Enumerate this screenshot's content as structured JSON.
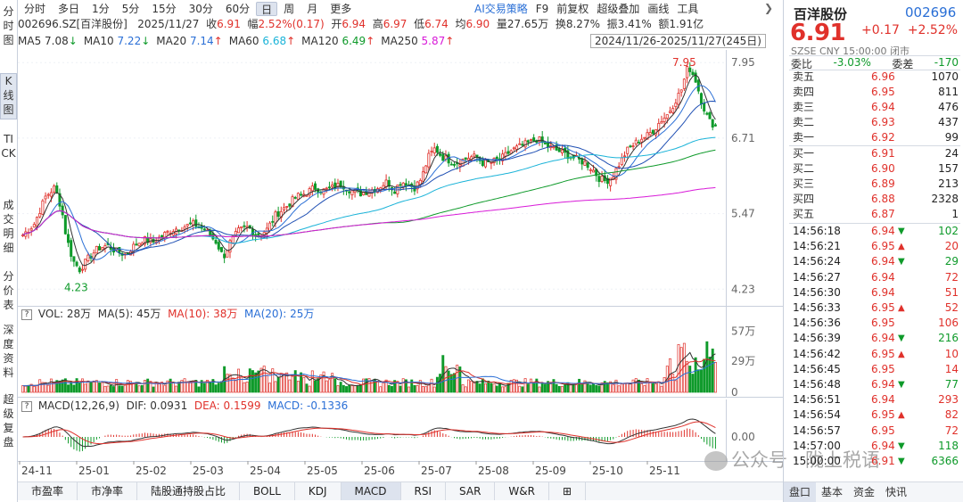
{
  "tabs": [
    "分时",
    "多日",
    "1分",
    "5分",
    "15分",
    "30分",
    "60分",
    "日",
    "周",
    "月",
    "更多"
  ],
  "active_tab": "日",
  "right_tools": {
    "ai": "AI交易策略",
    "items": [
      "F9",
      "前复权",
      "超级叠加",
      "画线",
      "工具"
    ]
  },
  "collapse_icon": "chevron-right",
  "sidebar": [
    "分时图",
    "K线图",
    "TICK",
    "成交明细",
    "分价表",
    "深度资料",
    "超级复盘"
  ],
  "info": {
    "code_name": "002696.SZ[百洋股份]",
    "date": "2025/11/27",
    "close_label": "收",
    "close": "6.91",
    "amp_label": "幅",
    "amp": "2.52%(0.17)",
    "open_label": "开",
    "open": "6.94",
    "high_label": "高",
    "high": "6.97",
    "low_label": "低",
    "low": "6.74",
    "avg_label": "均",
    "avg": "6.90",
    "vol_label": "量",
    "vol": "27.65万",
    "turn_label": "换",
    "turn": "8.27%",
    "swing_label": "振",
    "swing": "3.41%",
    "amt_label": "额",
    "amt": "1.91亿"
  },
  "ma": [
    {
      "name": "MA5",
      "value": "7.08",
      "arrow": "↓",
      "color": "#333333"
    },
    {
      "name": "MA10",
      "value": "7.22",
      "arrow": "↓",
      "color": "#2a6fd6"
    },
    {
      "name": "MA20",
      "value": "7.14",
      "arrow": "↑",
      "color": "#2a6fd6"
    },
    {
      "name": "MA60",
      "value": "6.68",
      "arrow": "↑",
      "color": "#1ab3d8"
    },
    {
      "name": "MA120",
      "value": "6.49",
      "arrow": "↑",
      "color": "#0e9a2a"
    },
    {
      "name": "MA250",
      "value": "5.87",
      "arrow": "↑",
      "color": "#d81ad8"
    }
  ],
  "date_range": "2024/11/26-2025/11/27(245日)",
  "price_axis": [
    "7.95",
    "6.71",
    "5.47",
    "4.23"
  ],
  "high_label": "7.95",
  "low_label": "4.23",
  "volume": {
    "legend_q": "?",
    "vol": "VOL: 28万",
    "ma5": "MA(5): 45万",
    "ma10": "MA(10): 38万",
    "ma20": "MA(20): 25万",
    "axis": [
      "57万",
      "29万",
      "0"
    ]
  },
  "macd": {
    "legend_q": "?",
    "title": "MACD(12,26,9)",
    "dif": "DIF: 0.0931",
    "dea": "DEA: 0.1599",
    "macd": "MACD: -0.1336",
    "axis": "0.00"
  },
  "x_axis": [
    "24-11",
    "25-01",
    "25-02",
    "25-03",
    "25-04",
    "25-05",
    "25-06",
    "25-07",
    "25-08",
    "25-09",
    "25-10",
    "25-11"
  ],
  "bottom_tabs": [
    "市盈率",
    "市净率",
    "陆股通持股占比",
    "BOLL",
    "KDJ",
    "MACD",
    "RSI",
    "SAR",
    "W&R",
    "⊞"
  ],
  "bottom_active": "MACD",
  "panel": {
    "name": "百洋股份",
    "code": "002696",
    "price": "6.91",
    "change": "+0.17",
    "change_pct": "+2.52%",
    "status": "SZSE  CNY  15:00:00  闭市",
    "wb_label": "委比",
    "wb": "-3.03%",
    "wc_label": "委差",
    "wc": "-170",
    "asks": [
      {
        "label": "卖五",
        "price": "6.96",
        "vol": "1070"
      },
      {
        "label": "卖四",
        "price": "6.95",
        "vol": "811"
      },
      {
        "label": "卖三",
        "price": "6.94",
        "vol": "476"
      },
      {
        "label": "卖二",
        "price": "6.93",
        "vol": "437"
      },
      {
        "label": "卖一",
        "price": "6.92",
        "vol": "99"
      }
    ],
    "bids": [
      {
        "label": "买一",
        "price": "6.91",
        "vol": "24"
      },
      {
        "label": "买二",
        "price": "6.90",
        "vol": "157"
      },
      {
        "label": "买三",
        "price": "6.89",
        "vol": "213"
      },
      {
        "label": "买四",
        "price": "6.88",
        "vol": "2328"
      },
      {
        "label": "买五",
        "price": "6.87",
        "vol": "1"
      }
    ],
    "ticks": [
      {
        "time": "14:56:18",
        "price": "6.94",
        "dir": "down",
        "vol": "102"
      },
      {
        "time": "14:56:21",
        "price": "6.95",
        "dir": "up",
        "vol": "20"
      },
      {
        "time": "14:56:24",
        "price": "6.94",
        "dir": "down",
        "vol": "29"
      },
      {
        "time": "14:56:27",
        "price": "6.94",
        "dir": "",
        "vol": "72"
      },
      {
        "time": "14:56:30",
        "price": "6.94",
        "dir": "",
        "vol": "51"
      },
      {
        "time": "14:56:33",
        "price": "6.95",
        "dir": "up",
        "vol": "52"
      },
      {
        "time": "14:56:36",
        "price": "6.95",
        "dir": "",
        "vol": "106"
      },
      {
        "time": "14:56:39",
        "price": "6.94",
        "dir": "down",
        "vol": "216"
      },
      {
        "time": "14:56:42",
        "price": "6.95",
        "dir": "up",
        "vol": "10"
      },
      {
        "time": "14:56:45",
        "price": "6.95",
        "dir": "",
        "vol": "14"
      },
      {
        "time": "14:56:48",
        "price": "6.94",
        "dir": "down",
        "vol": "77"
      },
      {
        "time": "14:56:51",
        "price": "6.94",
        "dir": "",
        "vol": "293"
      },
      {
        "time": "14:56:54",
        "price": "6.95",
        "dir": "up",
        "vol": "82"
      },
      {
        "time": "14:56:57",
        "price": "6.95",
        "dir": "",
        "vol": "72"
      },
      {
        "time": "14:57:00",
        "price": "6.94",
        "dir": "down",
        "vol": "118"
      },
      {
        "time": "15:00:00",
        "price": "6.91",
        "dir": "down",
        "vol": "6366"
      }
    ],
    "tabs": [
      "盘口",
      "基本",
      "资金",
      "快讯"
    ],
    "active_tab": "盘口"
  },
  "watermark": "公众号 · 陇上税语",
  "chart_data": {
    "type": "candlestick",
    "x_range": [
      "2024/11/26",
      "2025/11/27"
    ],
    "ylim": [
      4.0,
      8.1
    ],
    "high": 7.95,
    "low": 4.23,
    "close_points": [
      [
        0,
        5.12
      ],
      [
        10,
        5.3
      ],
      [
        20,
        5.75
      ],
      [
        28,
        5.9
      ],
      [
        34,
        5.55
      ],
      [
        38,
        5.1
      ],
      [
        44,
        4.7
      ],
      [
        50,
        4.55
      ],
      [
        58,
        4.75
      ],
      [
        66,
        4.9
      ],
      [
        74,
        4.95
      ],
      [
        82,
        4.85
      ],
      [
        90,
        4.8
      ],
      [
        98,
        4.95
      ],
      [
        106,
        5.05
      ],
      [
        114,
        5.0
      ],
      [
        122,
        5.1
      ],
      [
        130,
        5.2
      ],
      [
        140,
        5.25
      ],
      [
        150,
        5.3
      ],
      [
        160,
        5.2
      ],
      [
        170,
        5.0
      ],
      [
        176,
        4.75
      ],
      [
        182,
        5.0
      ],
      [
        190,
        5.2
      ],
      [
        198,
        5.25
      ],
      [
        206,
        5.1
      ],
      [
        214,
        5.2
      ],
      [
        222,
        5.45
      ],
      [
        232,
        5.6
      ],
      [
        240,
        5.75
      ],
      [
        248,
        5.8
      ],
      [
        256,
        5.9
      ],
      [
        264,
        5.85
      ],
      [
        272,
        5.9
      ],
      [
        280,
        5.95
      ],
      [
        288,
        5.85
      ],
      [
        296,
        5.8
      ],
      [
        304,
        5.85
      ],
      [
        312,
        5.9
      ],
      [
        320,
        6.0
      ],
      [
        326,
        5.85
      ],
      [
        332,
        6.0
      ],
      [
        338,
        5.95
      ],
      [
        344,
        5.9
      ],
      [
        350,
        6.05
      ],
      [
        356,
        6.4
      ],
      [
        362,
        6.55
      ],
      [
        368,
        6.4
      ],
      [
        374,
        6.35
      ],
      [
        380,
        6.3
      ],
      [
        386,
        6.35
      ],
      [
        392,
        6.4
      ],
      [
        398,
        6.4
      ],
      [
        404,
        6.3
      ],
      [
        410,
        6.3
      ],
      [
        416,
        6.35
      ],
      [
        422,
        6.4
      ],
      [
        428,
        6.5
      ],
      [
        434,
        6.55
      ],
      [
        440,
        6.6
      ],
      [
        446,
        6.65
      ],
      [
        452,
        6.7
      ],
      [
        458,
        6.6
      ],
      [
        464,
        6.55
      ],
      [
        470,
        6.5
      ],
      [
        476,
        6.45
      ],
      [
        482,
        6.4
      ],
      [
        488,
        6.35
      ],
      [
        494,
        6.3
      ],
      [
        500,
        6.2
      ],
      [
        506,
        6.05
      ],
      [
        512,
        6.0
      ],
      [
        518,
        6.1
      ],
      [
        524,
        6.3
      ],
      [
        530,
        6.5
      ],
      [
        536,
        6.6
      ],
      [
        542,
        6.7
      ],
      [
        548,
        6.75
      ],
      [
        554,
        6.85
      ],
      [
        560,
        7.0
      ],
      [
        566,
        7.1
      ],
      [
        572,
        7.3
      ],
      [
        578,
        7.5
      ],
      [
        584,
        7.9
      ],
      [
        590,
        7.7
      ],
      [
        596,
        7.3
      ],
      [
        602,
        7.0
      ],
      [
        608,
        6.91
      ]
    ],
    "volume_ylim": [
      0,
      60
    ],
    "volume_unit": "万",
    "volume_last": 28,
    "macd_last": {
      "dif": 0.0931,
      "dea": 0.1599,
      "macd": -0.1336
    }
  }
}
